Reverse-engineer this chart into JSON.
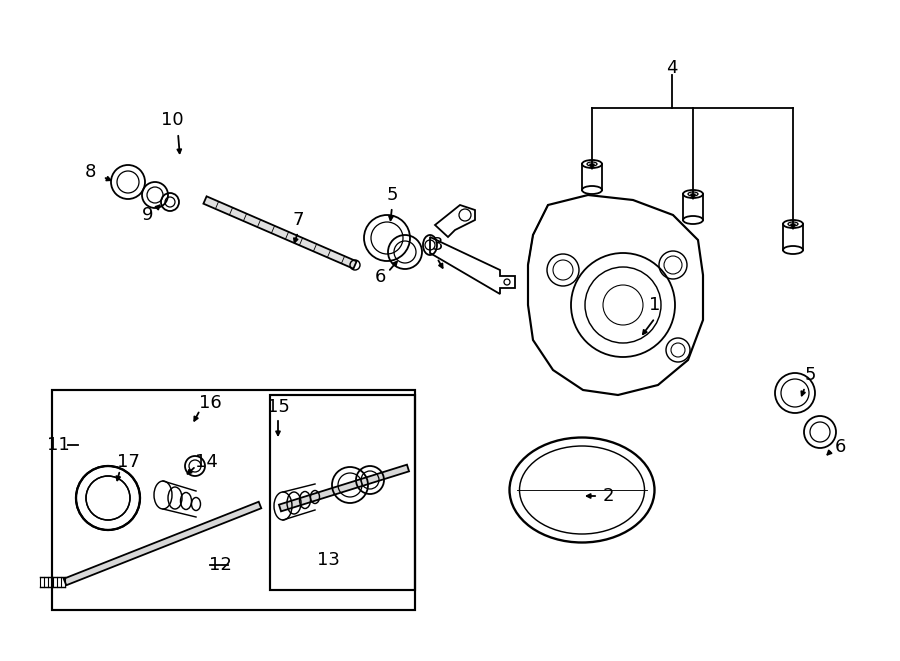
{
  "bg_color": "#ffffff",
  "line_color": "#000000",
  "lw": 1.3,
  "fig_width": 9.0,
  "fig_height": 6.61,
  "dpi": 100
}
